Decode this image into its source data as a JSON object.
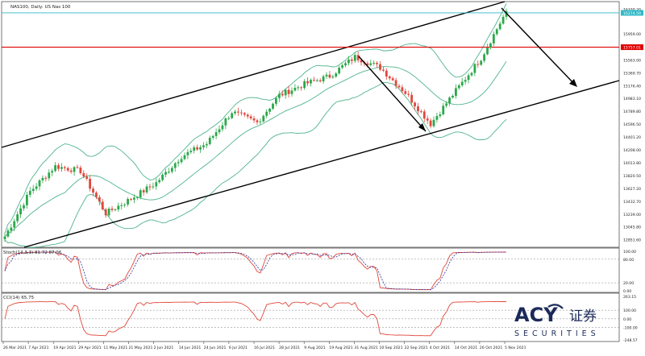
{
  "header": {
    "symbol_label": "NAS100, Daily: US Nas 100"
  },
  "colors": {
    "background": "#ffffff",
    "bull": "#2ba84a",
    "bear": "#e0483c",
    "bands": "#4fb48b",
    "channel": "#000000",
    "resistance": "#e00000",
    "top_line": "#2fb9c6",
    "stoch_main": "#e0483c",
    "stoch_signal": "#3030a0",
    "cci": "#e0483c",
    "grid": "#888888"
  },
  "main_panel": {
    "price_ticks": [
      "16330.20",
      "16274.59",
      "15959.00",
      "15757.01",
      "15563.00",
      "15369.70",
      "15176.40",
      "14983.10",
      "14789.80",
      "14596.50",
      "14401.20",
      "14208.00",
      "14013.80",
      "13820.50",
      "13627.20",
      "13432.70",
      "13239.00",
      "13045.80",
      "12851.60"
    ],
    "top_line_value": 16274.59,
    "resistance_value": 15757.01
  },
  "chart_data": {
    "type": "candlestick",
    "title": "NAS100, Daily: US Nas 100",
    "xlabel": "",
    "ylabel": "",
    "ylim": [
      12750,
      16420
    ],
    "x": [
      "26 Mar 2021",
      "7 Apr 2021",
      "19 Apr 2021",
      "29 Apr 2021",
      "11 May 2021",
      "21 May 2021",
      "2 Jun 2021",
      "14 Jun 2021",
      "24 Jun 2021",
      "6 Jul 2021",
      "16 Jul 2021",
      "28 Jul 2021",
      "9 Aug 2021",
      "19 Aug 2021",
      "31 Aug 2021",
      "10 Sep 2021",
      "22 Sep 2021",
      "4 Oct 2021",
      "14 Oct 2021",
      "26 Oct 2021",
      "5 Nov 2021"
    ],
    "close_series": [
      {
        "date": "26 Mar 2021",
        "close": 12900
      },
      {
        "date": "7 Apr 2021",
        "close": 13580
      },
      {
        "date": "19 Apr 2021",
        "close": 13960
      },
      {
        "date": "29 Apr 2021",
        "close": 13890
      },
      {
        "date": "11 May 2021",
        "close": 13250
      },
      {
        "date": "21 May 2021",
        "close": 13470
      },
      {
        "date": "2 Jun 2021",
        "close": 13710
      },
      {
        "date": "14 Jun 2021",
        "close": 14110
      },
      {
        "date": "24 Jun 2021",
        "close": 14300
      },
      {
        "date": "6 Jul 2021",
        "close": 14780
      },
      {
        "date": "16 Jul 2021",
        "close": 14620
      },
      {
        "date": "28 Jul 2021",
        "close": 15030
      },
      {
        "date": "9 Aug 2021",
        "close": 15200
      },
      {
        "date": "19 Aug 2021",
        "close": 15320
      },
      {
        "date": "31 Aug 2021",
        "close": 15610
      },
      {
        "date": "10 Sep 2021",
        "close": 15450
      },
      {
        "date": "22 Sep 2021",
        "close": 15070
      },
      {
        "date": "4 Oct 2021",
        "close": 14600
      },
      {
        "date": "14 Oct 2021",
        "close": 15100
      },
      {
        "date": "26 Oct 2021",
        "close": 15590
      },
      {
        "date": "5 Nov 2021",
        "close": 16300
      }
    ],
    "horizontal_levels": [
      16274.59,
      15757.01
    ],
    "grid": false,
    "legend": "none"
  },
  "stoch_panel": {
    "label": "Stoch(14,3,3) 81.72 87.06",
    "ticks": [
      "100.00",
      "80.00",
      "20.00",
      "0.00"
    ],
    "ylim": [
      0,
      100
    ]
  },
  "cci_panel": {
    "label": "CCI(14) 65.75",
    "ticks": [
      "263.15",
      "100.00",
      "0.00",
      "-100.00",
      "-248.57"
    ],
    "ylim": [
      -248.57,
      263.15
    ]
  },
  "date_axis": [
    "26 Mar 2021",
    "7 Apr 2021",
    "19 Apr 2021",
    "29 Apr 2021",
    "11 May 2021",
    "21 May 2021",
    "2 Jun 2021",
    "14 Jun 2021",
    "24 Jun 2021",
    "6 Jul 2021",
    "16 Jul 2021",
    "28 Jul 2021",
    "9 Aug 2021",
    "19 Aug 2021",
    "31 Aug 2021",
    "10 Sep 2021",
    "22 Sep 2021",
    "4 Oct 2021",
    "14 Oct 2021",
    "26 Oct 2021",
    "5 Nov 2021"
  ],
  "logo": {
    "main": "ACY",
    "cn": "证券",
    "sub": "SECURITIES"
  }
}
